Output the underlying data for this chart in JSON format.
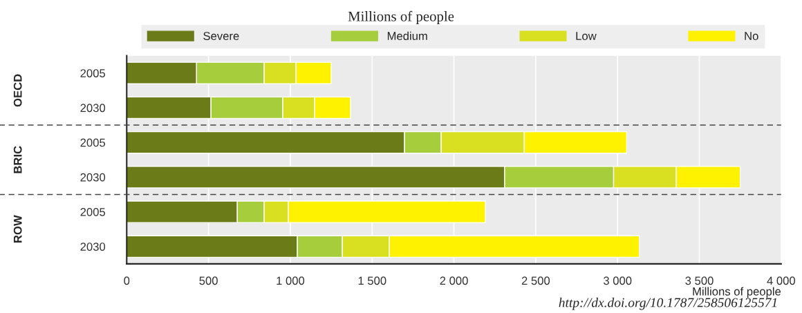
{
  "chart_data": {
    "type": "bar",
    "orientation": "horizontal",
    "stacked": true,
    "title": "Millions of people",
    "xlabel": "Millions of people",
    "categories": [
      "2005",
      "2030",
      "2005",
      "2030",
      "2005",
      "2030"
    ],
    "series": [
      {
        "name": "Severe",
        "color": "#6b7b17",
        "values": [
          427,
          515,
          1698,
          2310,
          676,
          1043
        ]
      },
      {
        "name": "Medium",
        "color": "#a6cd3c",
        "values": [
          413,
          439,
          224,
          666,
          164,
          275
        ]
      },
      {
        "name": "Low",
        "color": "#d8e021",
        "values": [
          195,
          195,
          508,
          383,
          148,
          287
        ]
      },
      {
        "name": "No",
        "color": "#fff200",
        "values": [
          215,
          219,
          626,
          391,
          1204,
          1528
        ]
      }
    ],
    "xlim": [
      0,
      4000
    ],
    "xticks": [
      0,
      500,
      {
        "value": 1000,
        "label": "1 000"
      },
      {
        "value": 1500,
        "label": "1 500"
      },
      {
        "value": 2000,
        "label": "2 000"
      },
      {
        "value": 2500,
        "label": "2 500"
      },
      {
        "value": 3000,
        "label": "3 000"
      },
      {
        "value": 3500,
        "label": "3 500"
      },
      {
        "value": 4000,
        "label": "4 000"
      }
    ],
    "grid": "x",
    "legend": "top",
    "annotations": [
      "OECD",
      "BRIC",
      "ROW",
      "http://dx.doi.org/10.1787/258506125571"
    ]
  }
}
